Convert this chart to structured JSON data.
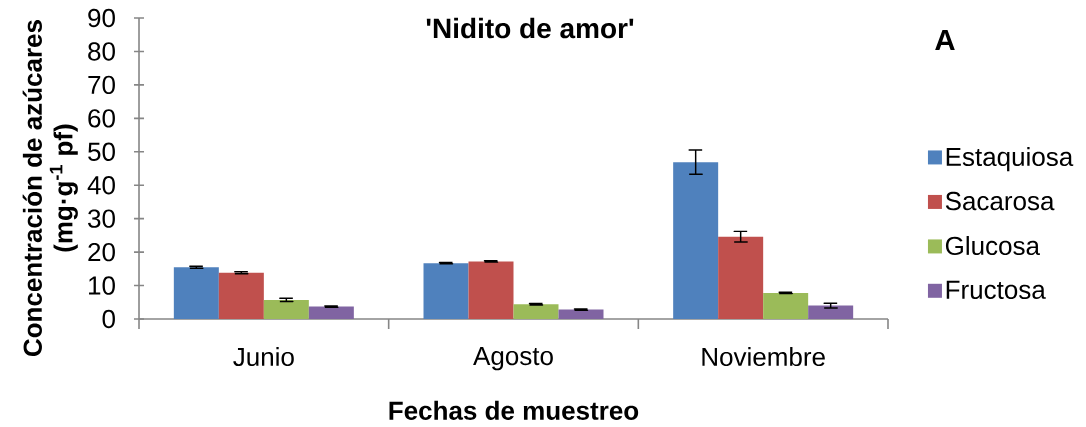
{
  "chart_data": {
    "type": "bar",
    "title": "'Nidito de amor'",
    "xlabel": "Fechas de muestreo",
    "ylabel": "Concentración de azúcares (mg·g$^{-1}$ pf)",
    "annotations": [
      "A"
    ],
    "categories": [
      "Junio",
      "Agosto",
      "Noviembre"
    ],
    "series": [
      {
        "name": "Estaquiosa",
        "color": "#4f81bd",
        "values": [
          15.5,
          16.7,
          46.9
        ],
        "errors": [
          0.3,
          0.2,
          3.6
        ]
      },
      {
        "name": "Sacarosa",
        "color": "#c0504d",
        "values": [
          13.8,
          17.2,
          24.6
        ],
        "errors": [
          0.3,
          0.2,
          1.6
        ]
      },
      {
        "name": "Glucosa",
        "color": "#9bbb59",
        "values": [
          5.7,
          4.4,
          7.8
        ],
        "errors": [
          0.5,
          0.2,
          0.2
        ]
      },
      {
        "name": "Fructosa",
        "color": "#8064a2",
        "values": [
          3.7,
          2.8,
          4.0
        ],
        "errors": [
          0.2,
          0.2,
          0.7
        ]
      }
    ],
    "ylim": [
      0,
      90
    ],
    "yticks": [
      0,
      10,
      20,
      30,
      40,
      50,
      60,
      70,
      80,
      90
    ],
    "legend": "right"
  }
}
